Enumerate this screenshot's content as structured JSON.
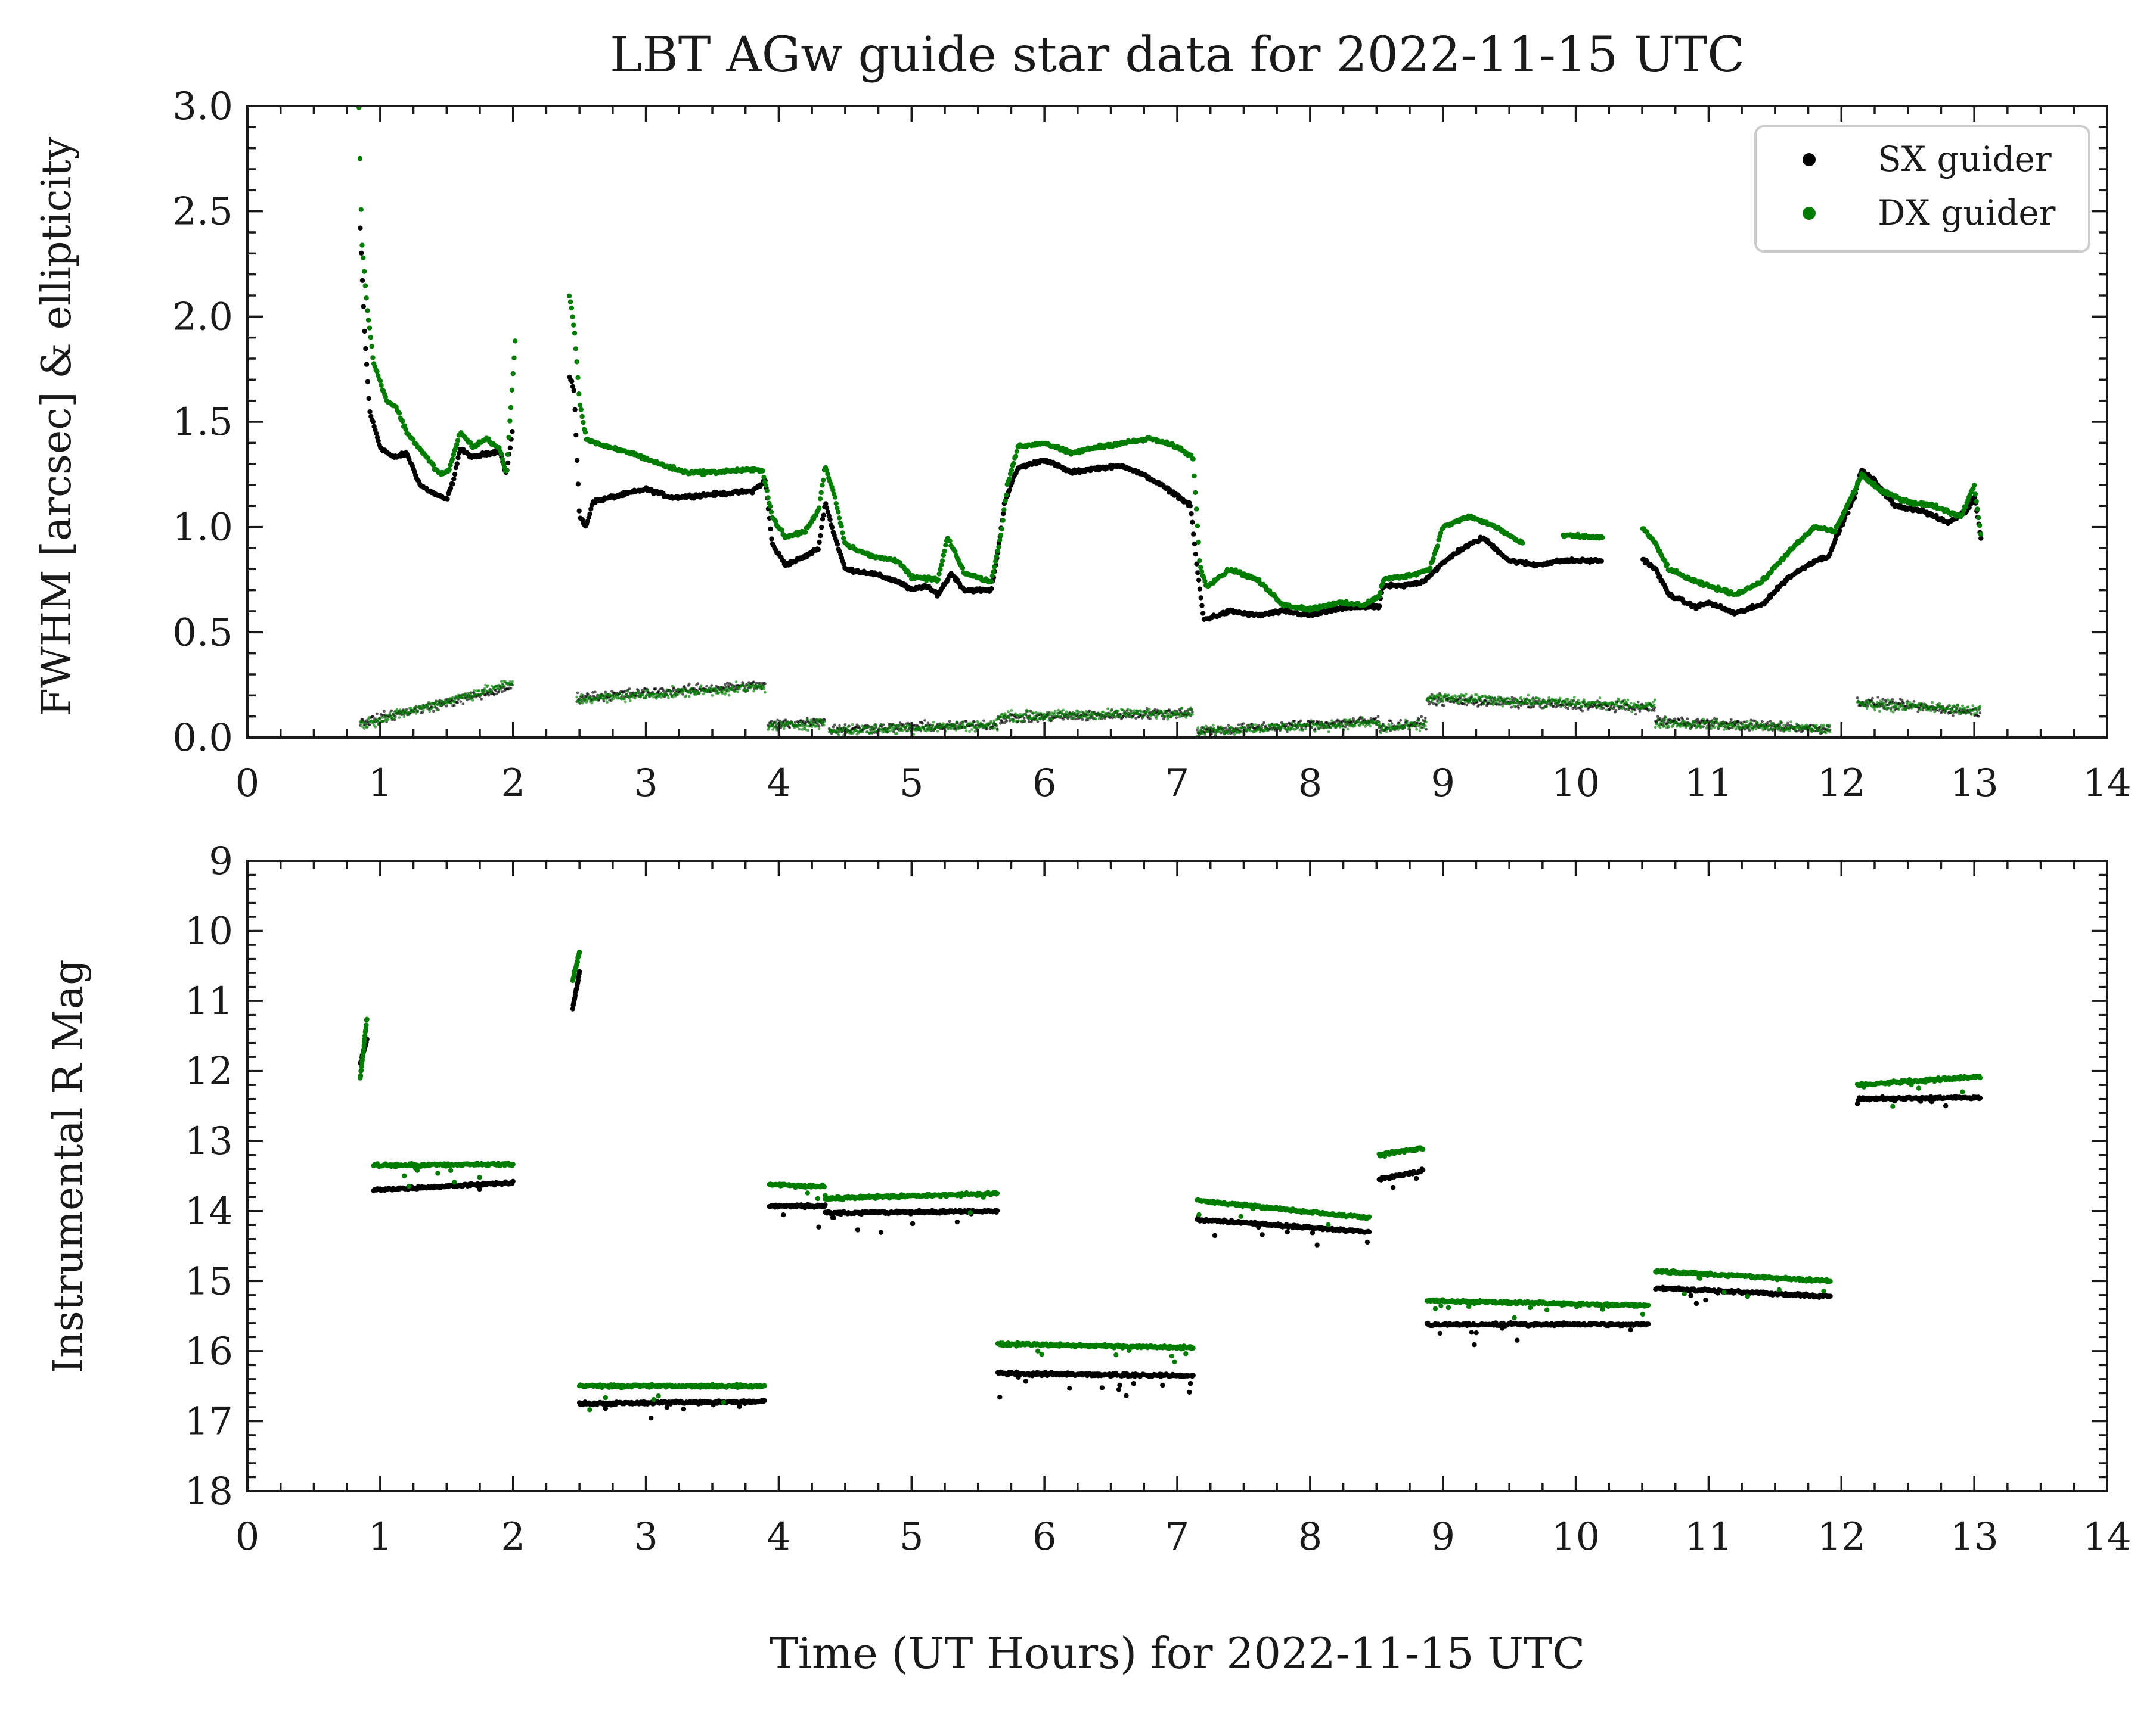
{
  "title": "LBT AGw guide star data for 2022-11-15 UTC",
  "xlabel": "Time (UT Hours) for 2022-11-15 UTC",
  "colors": {
    "sx": "#000000",
    "dx": "#007d00",
    "axis": "#1a1a1a",
    "background": "#ffffff"
  },
  "legend": [
    {
      "key": "sx",
      "label": "SX guider",
      "color": "#000000"
    },
    {
      "key": "dx",
      "label": "DX guider",
      "color": "#007d00"
    }
  ],
  "chart_data": [
    {
      "type": "scatter",
      "panel": "top",
      "ylabel": "FWHM [arcsec] & ellipticity",
      "xlim": [
        0,
        14
      ],
      "ylim": [
        0,
        3
      ],
      "xticks": [
        "0",
        "1",
        "2",
        "3",
        "4",
        "5",
        "6",
        "7",
        "8",
        "9",
        "10",
        "11",
        "12",
        "13",
        "14"
      ],
      "yticks": [
        "0.0",
        "0.5",
        "1.0",
        "1.5",
        "2.0",
        "2.5",
        "3.0"
      ],
      "legend_position": "top-right",
      "grid": false,
      "series": [
        {
          "name": "SX guider",
          "quantity": "FWHM",
          "points": [
            [
              0.85,
              2.42
            ],
            [
              0.88,
              1.95
            ],
            [
              0.92,
              1.55
            ],
            [
              1.0,
              1.38
            ],
            [
              1.1,
              1.33
            ],
            [
              1.2,
              1.35
            ],
            [
              1.3,
              1.2
            ],
            [
              1.4,
              1.16
            ],
            [
              1.5,
              1.13
            ],
            [
              1.55,
              1.22
            ],
            [
              1.6,
              1.37
            ],
            [
              1.7,
              1.33
            ],
            [
              1.8,
              1.35
            ],
            [
              1.9,
              1.36
            ],
            [
              1.95,
              1.25
            ],
            [
              2.0,
              1.48
            ],
            [
              2.42,
              1.72
            ],
            [
              2.46,
              1.65
            ],
            [
              2.5,
              1.05
            ],
            [
              2.55,
              1.0
            ],
            [
              2.6,
              1.12
            ],
            [
              2.8,
              1.15
            ],
            [
              3.0,
              1.18
            ],
            [
              3.2,
              1.14
            ],
            [
              3.4,
              1.15
            ],
            [
              3.6,
              1.16
            ],
            [
              3.8,
              1.17
            ],
            [
              3.9,
              1.22
            ],
            [
              3.95,
              0.92
            ],
            [
              4.05,
              0.82
            ],
            [
              4.2,
              0.86
            ],
            [
              4.3,
              0.9
            ],
            [
              4.35,
              1.12
            ],
            [
              4.4,
              1.0
            ],
            [
              4.5,
              0.8
            ],
            [
              4.7,
              0.78
            ],
            [
              4.9,
              0.74
            ],
            [
              5.0,
              0.7
            ],
            [
              5.1,
              0.72
            ],
            [
              5.2,
              0.68
            ],
            [
              5.3,
              0.78
            ],
            [
              5.4,
              0.7
            ],
            [
              5.6,
              0.7
            ],
            [
              5.65,
              0.88
            ],
            [
              5.7,
              1.12
            ],
            [
              5.8,
              1.28
            ],
            [
              6.0,
              1.32
            ],
            [
              6.2,
              1.26
            ],
            [
              6.4,
              1.28
            ],
            [
              6.6,
              1.29
            ],
            [
              6.8,
              1.23
            ],
            [
              7.0,
              1.15
            ],
            [
              7.1,
              1.1
            ],
            [
              7.15,
              0.8
            ],
            [
              7.2,
              0.56
            ],
            [
              7.4,
              0.6
            ],
            [
              7.6,
              0.58
            ],
            [
              7.8,
              0.6
            ],
            [
              8.0,
              0.58
            ],
            [
              8.2,
              0.61
            ],
            [
              8.4,
              0.62
            ],
            [
              8.52,
              0.62
            ],
            [
              8.55,
              0.72
            ],
            [
              8.7,
              0.72
            ],
            [
              8.85,
              0.74
            ],
            [
              8.95,
              0.8
            ],
            [
              9.1,
              0.88
            ],
            [
              9.3,
              0.95
            ],
            [
              9.5,
              0.84
            ],
            [
              9.7,
              0.82
            ],
            [
              9.9,
              0.84
            ],
            [
              10.2,
              0.84
            ],
            [
              10.5,
              0.85
            ],
            [
              10.6,
              0.8
            ],
            [
              10.7,
              0.68
            ],
            [
              10.9,
              0.62
            ],
            [
              11.0,
              0.64
            ],
            [
              11.2,
              0.59
            ],
            [
              11.4,
              0.63
            ],
            [
              11.6,
              0.76
            ],
            [
              11.8,
              0.84
            ],
            [
              11.9,
              0.86
            ],
            [
              12.1,
              1.15
            ],
            [
              12.15,
              1.27
            ],
            [
              12.25,
              1.22
            ],
            [
              12.4,
              1.1
            ],
            [
              12.6,
              1.08
            ],
            [
              12.8,
              1.02
            ],
            [
              12.95,
              1.08
            ],
            [
              13.0,
              1.15
            ],
            [
              13.05,
              0.95
            ]
          ]
        },
        {
          "name": "DX guider",
          "quantity": "FWHM",
          "points": [
            [
              0.84,
              3.0
            ],
            [
              0.86,
              2.38
            ],
            [
              0.9,
              2.05
            ],
            [
              0.95,
              1.78
            ],
            [
              1.05,
              1.6
            ],
            [
              1.12,
              1.57
            ],
            [
              1.2,
              1.45
            ],
            [
              1.35,
              1.33
            ],
            [
              1.45,
              1.25
            ],
            [
              1.52,
              1.27
            ],
            [
              1.6,
              1.45
            ],
            [
              1.7,
              1.38
            ],
            [
              1.8,
              1.42
            ],
            [
              1.9,
              1.37
            ],
            [
              1.95,
              1.25
            ],
            [
              2.02,
              1.92
            ],
            [
              2.42,
              2.12
            ],
            [
              2.46,
              1.95
            ],
            [
              2.5,
              1.6
            ],
            [
              2.55,
              1.42
            ],
            [
              2.7,
              1.38
            ],
            [
              2.9,
              1.35
            ],
            [
              3.1,
              1.3
            ],
            [
              3.3,
              1.26
            ],
            [
              3.5,
              1.26
            ],
            [
              3.7,
              1.27
            ],
            [
              3.88,
              1.27
            ],
            [
              3.95,
              1.05
            ],
            [
              4.05,
              0.95
            ],
            [
              4.2,
              0.98
            ],
            [
              4.3,
              1.08
            ],
            [
              4.35,
              1.29
            ],
            [
              4.42,
              1.15
            ],
            [
              4.5,
              0.92
            ],
            [
              4.7,
              0.86
            ],
            [
              4.9,
              0.84
            ],
            [
              5.0,
              0.76
            ],
            [
              5.2,
              0.75
            ],
            [
              5.27,
              0.95
            ],
            [
              5.4,
              0.78
            ],
            [
              5.6,
              0.74
            ],
            [
              5.67,
              0.95
            ],
            [
              5.72,
              1.2
            ],
            [
              5.8,
              1.38
            ],
            [
              6.0,
              1.4
            ],
            [
              6.2,
              1.35
            ],
            [
              6.4,
              1.38
            ],
            [
              6.6,
              1.4
            ],
            [
              6.8,
              1.42
            ],
            [
              7.0,
              1.38
            ],
            [
              7.12,
              1.33
            ],
            [
              7.17,
              0.82
            ],
            [
              7.22,
              0.72
            ],
            [
              7.4,
              0.8
            ],
            [
              7.6,
              0.75
            ],
            [
              7.8,
              0.63
            ],
            [
              8.0,
              0.61
            ],
            [
              8.2,
              0.64
            ],
            [
              8.4,
              0.63
            ],
            [
              8.52,
              0.67
            ],
            [
              8.55,
              0.75
            ],
            [
              8.75,
              0.77
            ],
            [
              8.9,
              0.8
            ],
            [
              9.0,
              1.0
            ],
            [
              9.2,
              1.05
            ],
            [
              9.4,
              1.0
            ],
            [
              9.6,
              0.92
            ],
            [
              9.9,
              0.96
            ],
            [
              10.2,
              0.95
            ],
            [
              10.5,
              1.0
            ],
            [
              10.6,
              0.92
            ],
            [
              10.7,
              0.8
            ],
            [
              10.9,
              0.74
            ],
            [
              11.0,
              0.72
            ],
            [
              11.2,
              0.68
            ],
            [
              11.4,
              0.74
            ],
            [
              11.6,
              0.88
            ],
            [
              11.8,
              1.0
            ],
            [
              11.95,
              0.98
            ],
            [
              12.12,
              1.2
            ],
            [
              12.15,
              1.25
            ],
            [
              12.3,
              1.17
            ],
            [
              12.5,
              1.12
            ],
            [
              12.7,
              1.1
            ],
            [
              12.9,
              1.05
            ],
            [
              13.0,
              1.2
            ],
            [
              13.05,
              0.96
            ]
          ]
        },
        {
          "name": "SX guider",
          "quantity": "ellipticity",
          "segments": [
            [
              0.85,
              2.0,
              0.07,
              0.24
            ],
            [
              2.48,
              3.9,
              0.19,
              0.25
            ],
            [
              3.92,
              4.35,
              0.06,
              0.08
            ],
            [
              4.38,
              5.65,
              0.04,
              0.06
            ],
            [
              5.65,
              7.12,
              0.09,
              0.12
            ],
            [
              7.15,
              8.52,
              0.03,
              0.08
            ],
            [
              8.52,
              8.88,
              0.05,
              0.07
            ],
            [
              8.88,
              10.6,
              0.18,
              0.14
            ],
            [
              10.6,
              11.92,
              0.08,
              0.04
            ],
            [
              12.12,
              13.05,
              0.17,
              0.12
            ]
          ]
        },
        {
          "name": "DX guider",
          "quantity": "ellipticity",
          "segments": [
            [
              0.85,
              2.0,
              0.06,
              0.26
            ],
            [
              2.48,
              3.9,
              0.18,
              0.24
            ],
            [
              3.92,
              4.35,
              0.05,
              0.07
            ],
            [
              4.38,
              5.65,
              0.03,
              0.06
            ],
            [
              5.65,
              7.12,
              0.1,
              0.12
            ],
            [
              7.15,
              8.52,
              0.03,
              0.07
            ],
            [
              8.52,
              8.88,
              0.04,
              0.06
            ],
            [
              8.88,
              10.6,
              0.19,
              0.15
            ],
            [
              10.6,
              11.92,
              0.07,
              0.04
            ],
            [
              12.12,
              13.05,
              0.16,
              0.13
            ]
          ]
        }
      ]
    },
    {
      "type": "scatter",
      "panel": "bottom",
      "ylabel": "Instrumental R Mag",
      "xlim": [
        0,
        14
      ],
      "ylim": [
        18,
        9
      ],
      "yaxis_inverted": true,
      "xticks": [
        "0",
        "1",
        "2",
        "3",
        "4",
        "5",
        "6",
        "7",
        "8",
        "9",
        "10",
        "11",
        "12",
        "13",
        "14"
      ],
      "yticks": [
        "9",
        "10",
        "11",
        "12",
        "13",
        "14",
        "15",
        "16",
        "17",
        "18"
      ],
      "grid": false,
      "series": [
        {
          "name": "SX guider",
          "segments": [
            [
              0.85,
              0.9,
              11.9,
              11.55
            ],
            [
              0.95,
              2.0,
              13.7,
              13.6
            ],
            [
              2.45,
              2.5,
              11.1,
              10.6
            ],
            [
              2.5,
              3.9,
              16.75,
              16.72
            ],
            [
              3.93,
              4.35,
              13.93,
              13.93
            ],
            [
              4.35,
              5.65,
              14.03,
              14.0
            ],
            [
              5.65,
              7.12,
              16.32,
              16.35
            ],
            [
              7.15,
              8.45,
              14.12,
              14.3
            ],
            [
              8.52,
              8.85,
              13.55,
              13.42
            ],
            [
              8.88,
              10.55,
              15.62,
              15.62
            ],
            [
              10.6,
              11.92,
              15.1,
              15.22
            ],
            [
              12.12,
              13.05,
              12.4,
              12.38
            ]
          ]
        },
        {
          "name": "DX guider",
          "segments": [
            [
              0.85,
              0.9,
              12.1,
              11.25
            ],
            [
              0.95,
              2.0,
              13.35,
              13.33
            ],
            [
              2.45,
              2.5,
              10.7,
              10.3
            ],
            [
              2.5,
              3.9,
              16.5,
              16.5
            ],
            [
              3.93,
              4.35,
              13.62,
              13.65
            ],
            [
              4.35,
              5.65,
              13.82,
              13.75
            ],
            [
              5.65,
              7.12,
              15.9,
              15.95
            ],
            [
              7.15,
              8.45,
              13.85,
              14.1
            ],
            [
              8.52,
              8.85,
              13.2,
              13.1
            ],
            [
              8.88,
              10.55,
              15.28,
              15.35
            ],
            [
              10.6,
              11.92,
              14.86,
              15.0
            ],
            [
              12.12,
              13.05,
              12.2,
              12.08
            ]
          ]
        }
      ]
    }
  ]
}
